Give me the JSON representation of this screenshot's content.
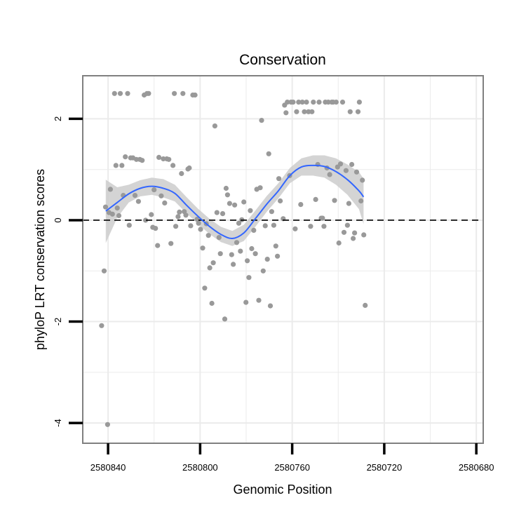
{
  "chart_data": {
    "type": "scatter",
    "title": "Conservation",
    "xlabel": "Genomic Position",
    "ylabel": "phyloP LRT conservation scores",
    "x_reversed": true,
    "xlim": [
      2580851,
      2580677
    ],
    "ylim": [
      -4.4,
      2.85
    ],
    "x_ticks": [
      2580840,
      2580800,
      2580760,
      2580720,
      2580680
    ],
    "x_tick_labels": [
      "2580840",
      "2580800",
      "2580760",
      "2580720",
      "2580680"
    ],
    "y_ticks": [
      -4,
      -2,
      0,
      2
    ],
    "y_tick_labels": [
      "-4",
      "-2",
      "0",
      "2"
    ],
    "reference_line": {
      "y": 0,
      "style": "dashed"
    },
    "grid": true,
    "legend": "none",
    "colors": {
      "points": "#999999",
      "smooth": "#3366FF",
      "ribbon": "#CCCCCC",
      "panel_border": "#808080",
      "grid": "#EBEBEB"
    },
    "points": [
      {
        "x": 2580842.8,
        "y": -2.08
      },
      {
        "x": 2580841.7,
        "y": -1.0
      },
      {
        "x": 2580841.1,
        "y": 0.26
      },
      {
        "x": 2580840.2,
        "y": -4.03
      },
      {
        "x": 2580839.6,
        "y": 0.15
      },
      {
        "x": 2580839.0,
        "y": 0.61
      },
      {
        "x": 2580838.1,
        "y": 0.12
      },
      {
        "x": 2580837.2,
        "y": 2.5
      },
      {
        "x": 2580836.6,
        "y": 1.08
      },
      {
        "x": 2580836.0,
        "y": 0.24
      },
      {
        "x": 2580835.3,
        "y": 0.09
      },
      {
        "x": 2580834.7,
        "y": 2.5
      },
      {
        "x": 2580834.0,
        "y": 1.08
      },
      {
        "x": 2580833.4,
        "y": 0.49
      },
      {
        "x": 2580832.5,
        "y": 1.25
      },
      {
        "x": 2580831.5,
        "y": 2.5
      },
      {
        "x": 2580830.8,
        "y": -0.1
      },
      {
        "x": 2580830.2,
        "y": 1.23
      },
      {
        "x": 2580829.2,
        "y": 1.23
      },
      {
        "x": 2580828.3,
        "y": 0.49
      },
      {
        "x": 2580827.7,
        "y": 1.2
      },
      {
        "x": 2580826.8,
        "y": 0.37
      },
      {
        "x": 2580826.2,
        "y": 1.2
      },
      {
        "x": 2580825.2,
        "y": 1.18
      },
      {
        "x": 2580824.3,
        "y": 2.47
      },
      {
        "x": 2580823.7,
        "y": 0.0
      },
      {
        "x": 2580823.1,
        "y": 2.5
      },
      {
        "x": 2580822.4,
        "y": 2.5
      },
      {
        "x": 2580821.2,
        "y": 0.11
      },
      {
        "x": 2580820.6,
        "y": -0.14
      },
      {
        "x": 2580820.0,
        "y": 0.6
      },
      {
        "x": 2580819.4,
        "y": -0.16
      },
      {
        "x": 2580818.5,
        "y": -0.5
      },
      {
        "x": 2580817.9,
        "y": 1.24
      },
      {
        "x": 2580816.9,
        "y": 0.48
      },
      {
        "x": 2580816.0,
        "y": 1.21
      },
      {
        "x": 2580815.4,
        "y": 0.34
      },
      {
        "x": 2580814.5,
        "y": 1.21
      },
      {
        "x": 2580813.6,
        "y": 1.2
      },
      {
        "x": 2580812.7,
        "y": -0.46
      },
      {
        "x": 2580811.8,
        "y": 1.08
      },
      {
        "x": 2580811.2,
        "y": 2.5
      },
      {
        "x": 2580810.6,
        "y": -0.12
      },
      {
        "x": 2580809.6,
        "y": 0.07
      },
      {
        "x": 2580809.0,
        "y": 0.16
      },
      {
        "x": 2580808.1,
        "y": 0.92
      },
      {
        "x": 2580807.5,
        "y": 2.5
      },
      {
        "x": 2580806.9,
        "y": 0.17
      },
      {
        "x": 2580806.2,
        "y": 0.1
      },
      {
        "x": 2580805.3,
        "y": 1.01
      },
      {
        "x": 2580804.7,
        "y": 1.03
      },
      {
        "x": 2580804.1,
        "y": -0.11
      },
      {
        "x": 2580803.2,
        "y": 2.47
      },
      {
        "x": 2580802.2,
        "y": 2.47
      },
      {
        "x": 2580801.3,
        "y": 0.02
      },
      {
        "x": 2580800.7,
        "y": -0.06
      },
      {
        "x": 2580799.8,
        "y": -0.18
      },
      {
        "x": 2580798.9,
        "y": -0.55
      },
      {
        "x": 2580798.0,
        "y": -1.34
      },
      {
        "x": 2580797.3,
        "y": -0.07
      },
      {
        "x": 2580796.4,
        "y": -0.3
      },
      {
        "x": 2580795.8,
        "y": -0.94
      },
      {
        "x": 2580794.9,
        "y": -1.64
      },
      {
        "x": 2580794.3,
        "y": -0.84
      },
      {
        "x": 2580793.6,
        "y": 1.86
      },
      {
        "x": 2580792.7,
        "y": 0.15
      },
      {
        "x": 2580791.8,
        "y": -0.34
      },
      {
        "x": 2580791.2,
        "y": -0.66
      },
      {
        "x": 2580790.2,
        "y": 0.13
      },
      {
        "x": 2580789.3,
        "y": -1.95
      },
      {
        "x": 2580788.7,
        "y": 0.63
      },
      {
        "x": 2580788.1,
        "y": 0.5
      },
      {
        "x": 2580787.2,
        "y": 0.33
      },
      {
        "x": 2580786.3,
        "y": -0.68
      },
      {
        "x": 2580785.6,
        "y": -0.87
      },
      {
        "x": 2580785.0,
        "y": 0.3
      },
      {
        "x": 2580784.1,
        "y": -0.44
      },
      {
        "x": 2580783.2,
        "y": -0.06
      },
      {
        "x": 2580782.5,
        "y": -0.61
      },
      {
        "x": 2580781.9,
        "y": 0.01
      },
      {
        "x": 2580781.0,
        "y": 0.36
      },
      {
        "x": 2580780.1,
        "y": -1.62
      },
      {
        "x": 2580779.5,
        "y": -0.8
      },
      {
        "x": 2580778.8,
        "y": -1.13
      },
      {
        "x": 2580778.2,
        "y": 0.19
      },
      {
        "x": 2580777.6,
        "y": -0.56
      },
      {
        "x": 2580776.7,
        "y": -0.2
      },
      {
        "x": 2580776.0,
        "y": -0.66
      },
      {
        "x": 2580775.4,
        "y": 0.61
      },
      {
        "x": 2580774.5,
        "y": -1.58
      },
      {
        "x": 2580773.9,
        "y": 0.64
      },
      {
        "x": 2580773.3,
        "y": 1.97
      },
      {
        "x": 2580772.6,
        "y": -1.0
      },
      {
        "x": 2580771.7,
        "y": -0.11
      },
      {
        "x": 2580770.8,
        "y": -0.77
      },
      {
        "x": 2580770.2,
        "y": 1.31
      },
      {
        "x": 2580769.5,
        "y": -1.69
      },
      {
        "x": 2580768.9,
        "y": 0.17
      },
      {
        "x": 2580768.0,
        "y": -0.1
      },
      {
        "x": 2580767.1,
        "y": -0.51
      },
      {
        "x": 2580766.4,
        "y": -0.71
      },
      {
        "x": 2580765.8,
        "y": 0.82
      },
      {
        "x": 2580765.2,
        "y": 0.38
      },
      {
        "x": 2580763.9,
        "y": 0.03
      },
      {
        "x": 2580763.3,
        "y": 2.27
      },
      {
        "x": 2580762.7,
        "y": 2.12
      },
      {
        "x": 2580762.1,
        "y": 2.33
      },
      {
        "x": 2580761.1,
        "y": 0.88
      },
      {
        "x": 2580760.5,
        "y": 2.33
      },
      {
        "x": 2580759.6,
        "y": 2.33
      },
      {
        "x": 2580758.7,
        "y": -0.17
      },
      {
        "x": 2580758.1,
        "y": 2.14
      },
      {
        "x": 2580757.2,
        "y": 2.33
      },
      {
        "x": 2580756.3,
        "y": 0.31
      },
      {
        "x": 2580755.6,
        "y": 2.33
      },
      {
        "x": 2580754.7,
        "y": 2.14
      },
      {
        "x": 2580753.8,
        "y": 2.33
      },
      {
        "x": 2580752.9,
        "y": 2.14
      },
      {
        "x": 2580752.0,
        "y": -0.12
      },
      {
        "x": 2580751.4,
        "y": 2.14
      },
      {
        "x": 2580750.8,
        "y": 2.33
      },
      {
        "x": 2580749.8,
        "y": 0.41
      },
      {
        "x": 2580748.9,
        "y": 1.1
      },
      {
        "x": 2580748.3,
        "y": 2.33
      },
      {
        "x": 2580747.4,
        "y": 0.04
      },
      {
        "x": 2580746.8,
        "y": 0.04
      },
      {
        "x": 2580746.2,
        "y": -0.12
      },
      {
        "x": 2580745.6,
        "y": 2.33
      },
      {
        "x": 2580744.9,
        "y": 1.03
      },
      {
        "x": 2580744.3,
        "y": 2.33
      },
      {
        "x": 2580743.7,
        "y": 0.9
      },
      {
        "x": 2580742.8,
        "y": 2.33
      },
      {
        "x": 2580742.2,
        "y": 2.33
      },
      {
        "x": 2580741.6,
        "y": 0.39
      },
      {
        "x": 2580740.9,
        "y": 2.33
      },
      {
        "x": 2580740.3,
        "y": 1.05
      },
      {
        "x": 2580739.7,
        "y": -0.45
      },
      {
        "x": 2580739.0,
        "y": 1.11
      },
      {
        "x": 2580738.1,
        "y": 2.33
      },
      {
        "x": 2580737.5,
        "y": -0.24
      },
      {
        "x": 2580736.6,
        "y": 0.98
      },
      {
        "x": 2580736.0,
        "y": -0.1
      },
      {
        "x": 2580735.4,
        "y": 0.33
      },
      {
        "x": 2580734.8,
        "y": 2.14
      },
      {
        "x": 2580734.1,
        "y": 1.1
      },
      {
        "x": 2580733.5,
        "y": -0.36
      },
      {
        "x": 2580732.9,
        "y": -0.25
      },
      {
        "x": 2580732.0,
        "y": 0.95
      },
      {
        "x": 2580731.4,
        "y": 2.14
      },
      {
        "x": 2580730.8,
        "y": 2.33
      },
      {
        "x": 2580730.1,
        "y": 0.38
      },
      {
        "x": 2580729.5,
        "y": 0.79
      },
      {
        "x": 2580728.9,
        "y": -0.29
      },
      {
        "x": 2580728.3,
        "y": -1.68
      }
    ],
    "smooth_line": {
      "x": [
        2580841,
        2580836,
        2580831,
        2580826,
        2580821,
        2580816,
        2580811,
        2580806,
        2580801,
        2580796,
        2580791,
        2580786,
        2580781,
        2580776,
        2580771,
        2580766,
        2580761,
        2580756,
        2580751,
        2580746,
        2580741,
        2580736,
        2580731,
        2580729
      ],
      "y": [
        0.18,
        0.35,
        0.52,
        0.63,
        0.67,
        0.63,
        0.53,
        0.3,
        0.08,
        -0.12,
        -0.28,
        -0.36,
        -0.25,
        0.03,
        0.32,
        0.58,
        0.88,
        1.05,
        1.08,
        1.06,
        0.96,
        0.8,
        0.58,
        0.46
      ],
      "ymin": [
        -0.45,
        0.05,
        0.35,
        0.47,
        0.5,
        0.45,
        0.37,
        0.14,
        -0.07,
        -0.27,
        -0.43,
        -0.51,
        -0.41,
        -0.13,
        0.17,
        0.43,
        0.73,
        0.88,
        0.88,
        0.84,
        0.7,
        0.5,
        0.22,
        -0.08
      ],
      "ymax": [
        0.8,
        0.65,
        0.7,
        0.79,
        0.84,
        0.81,
        0.7,
        0.46,
        0.23,
        0.03,
        -0.13,
        -0.21,
        -0.09,
        0.19,
        0.48,
        0.73,
        1.03,
        1.22,
        1.28,
        1.28,
        1.22,
        1.1,
        0.95,
        0.82
      ]
    }
  }
}
